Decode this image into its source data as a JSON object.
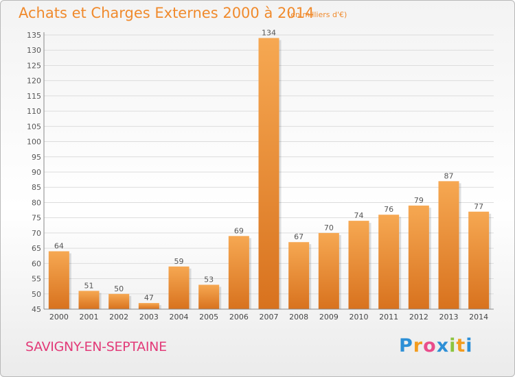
{
  "chart_data": {
    "type": "bar",
    "title": "Achats et Charges Externes 2000 à 2014",
    "subtitle": "(en milliers d'€)",
    "categories": [
      "2000",
      "2001",
      "2002",
      "2003",
      "2004",
      "2005",
      "2006",
      "2007",
      "2008",
      "2009",
      "2010",
      "2011",
      "2012",
      "2013",
      "2014"
    ],
    "values": [
      64,
      51,
      50,
      47,
      59,
      53,
      69,
      134,
      67,
      70,
      74,
      76,
      79,
      87,
      77
    ],
    "xlabel": "",
    "ylabel": "",
    "ylim": [
      45,
      135
    ],
    "yticks": [
      45,
      50,
      55,
      60,
      65,
      70,
      75,
      80,
      85,
      90,
      95,
      100,
      105,
      110,
      115,
      120,
      125,
      130,
      135
    ],
    "grid": true,
    "legend": "none",
    "bar_color": "#f29a3e"
  },
  "footer": {
    "commune": "SAVIGNY-EN-SEPTAINE",
    "brand_letters": [
      "P",
      "r",
      "o",
      "x",
      "i",
      "t",
      "i"
    ],
    "brand_colors": [
      "#2d8fd6",
      "#f39c1f",
      "#e94d8b",
      "#2d8fd6",
      "#8cc43f",
      "#f39c1f",
      "#2d8fd6"
    ]
  }
}
